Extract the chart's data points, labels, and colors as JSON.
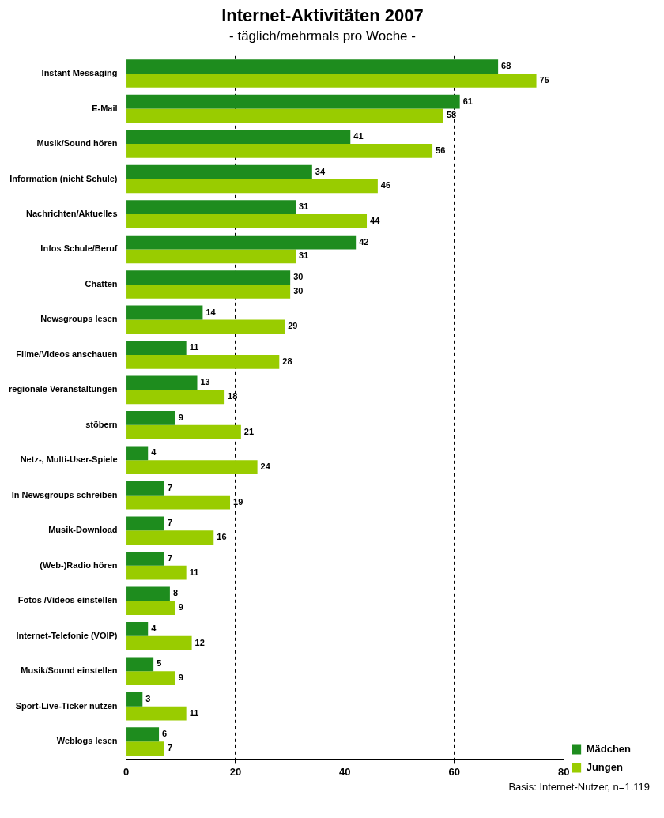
{
  "chart_data": {
    "type": "bar",
    "orientation": "horizontal",
    "title": "Internet-Aktivitäten 2007",
    "subtitle": "- täglich/mehrmals pro Woche -",
    "categories": [
      "Instant Messaging",
      "E-Mail",
      "Musik/Sound hören",
      "Information (nicht Schule)",
      "Nachrichten/Aktuelles",
      "Infos Schule/Beruf",
      "Chatten",
      "Newsgroups lesen",
      "Filme/Videos anschauen",
      "regionale Veranstaltungen",
      "stöbern",
      "Netz-, Multi-User-Spiele",
      "In Newsgroups schreiben",
      "Musik-Download",
      "(Web-)Radio hören",
      "Fotos /Videos einstellen",
      "Internet-Telefonie (VOIP)",
      "Musik/Sound einstellen",
      "Sport-Live-Ticker nutzen",
      "Weblogs lesen"
    ],
    "series": [
      {
        "name": "Mädchen",
        "color": "#1e8c1e",
        "values": [
          68,
          61,
          41,
          34,
          31,
          42,
          30,
          14,
          11,
          13,
          9,
          4,
          7,
          7,
          7,
          8,
          4,
          5,
          3,
          6
        ]
      },
      {
        "name": "Jungen",
        "color": "#99cc00",
        "values": [
          75,
          58,
          56,
          46,
          44,
          31,
          30,
          29,
          28,
          18,
          21,
          24,
          19,
          16,
          11,
          9,
          12,
          9,
          11,
          7
        ]
      }
    ],
    "xlim": [
      0,
      80
    ],
    "xticks": [
      0,
      20,
      40,
      60,
      80
    ],
    "grid": "x",
    "line_style": "dashed",
    "legend": "right",
    "data_labels": true,
    "annotations": [
      "Basis: Internet-Nutzer, n=1.119"
    ]
  }
}
